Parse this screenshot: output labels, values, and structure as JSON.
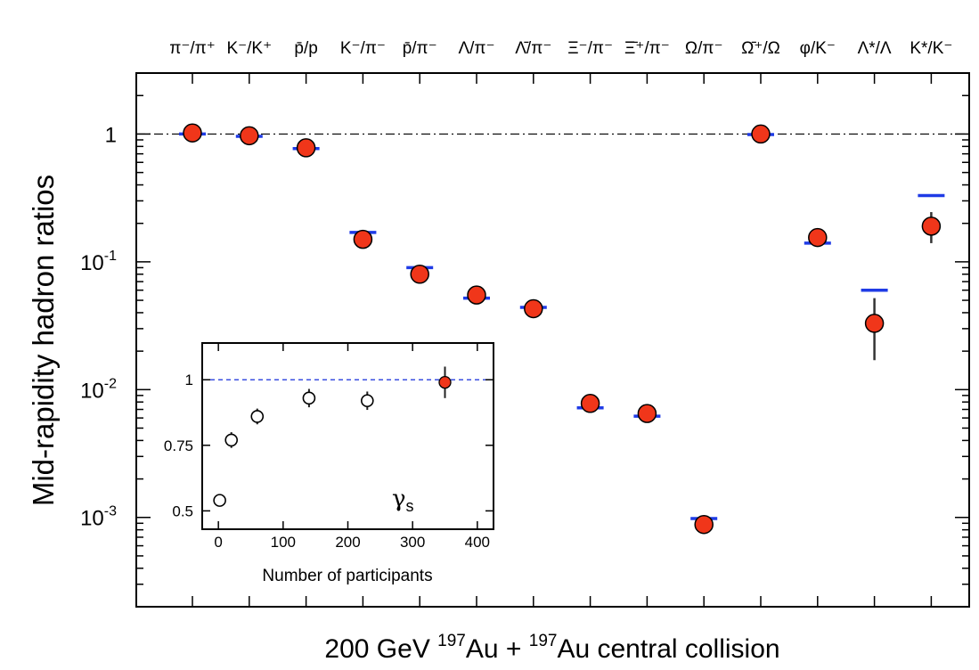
{
  "chart_data": [
    {
      "type": "scatter",
      "yscale": "log",
      "ylabel": "Mid-rapidity hadron ratios",
      "xlabel_parts": [
        "200 GeV ",
        "197",
        "Au + ",
        "197",
        "Au central collision"
      ],
      "ylim": [
        0.0002,
        3
      ],
      "yticks": [
        {
          "base": "1",
          "exp": ""
        },
        {
          "base": "10",
          "exp": "-1"
        },
        {
          "base": "10",
          "exp": "-2"
        },
        {
          "base": "10",
          "exp": "-3"
        }
      ],
      "ytick_values": [
        1,
        0.1,
        0.01,
        0.001
      ],
      "reference_line": 1,
      "categories": [
        "π⁻/π⁺",
        "K⁻/K⁺",
        "p̄/p",
        "K⁻/π⁻",
        "p̄/π⁻",
        "Λ/π⁻",
        "Λ̄/π⁻",
        "Ξ⁻/π⁻",
        "Ξ̄⁺/π⁻",
        "Ω/π⁻",
        "Ω̄⁺/Ω",
        "φ/K⁻",
        "Λ*/Λ",
        "K*/K⁻"
      ],
      "series": [
        {
          "marker": "red-circle",
          "values": [
            1.02,
            0.97,
            0.78,
            0.15,
            0.08,
            0.055,
            0.043,
            0.0078,
            0.0065,
            0.00088,
            1.0,
            0.155,
            0.033,
            0.19
          ],
          "err_low": [
            null,
            null,
            null,
            null,
            null,
            null,
            null,
            null,
            null,
            null,
            null,
            null,
            0.017,
            0.14
          ],
          "err_high": [
            null,
            null,
            null,
            null,
            null,
            null,
            null,
            null,
            null,
            null,
            null,
            null,
            0.052,
            0.245
          ]
        },
        {
          "marker": "blue-dash",
          "values": [
            1.0,
            0.96,
            0.77,
            0.17,
            0.09,
            0.052,
            0.044,
            0.0072,
            0.0062,
            0.00098,
            0.99,
            0.14,
            0.06,
            0.33
          ]
        }
      ]
    },
    {
      "type": "scatter",
      "xlabel": "Number of participants",
      "ylabel": "",
      "annotation": {
        "main": "γ",
        "sub": "s"
      },
      "xlim": [
        -25,
        425
      ],
      "ylim": [
        0.43,
        1.14
      ],
      "xticks": [
        0,
        100,
        200,
        300,
        400
      ],
      "xtick_labels": [
        "0",
        "100",
        "200",
        "300",
        "400"
      ],
      "yticks": [
        0.5,
        0.75,
        1
      ],
      "ytick_labels": [
        "0.5",
        "0.75",
        "1"
      ],
      "reference_line": 1,
      "series": [
        {
          "marker": "open-circle",
          "x": [
            2,
            20,
            60,
            140,
            230
          ],
          "y": [
            0.54,
            0.77,
            0.86,
            0.93,
            0.92
          ],
          "err": [
            0.02,
            0.03,
            0.03,
            0.035,
            0.035
          ]
        },
        {
          "marker": "red-circle",
          "x": [
            350
          ],
          "y": [
            0.99
          ],
          "err": [
            0.06
          ]
        }
      ]
    }
  ]
}
